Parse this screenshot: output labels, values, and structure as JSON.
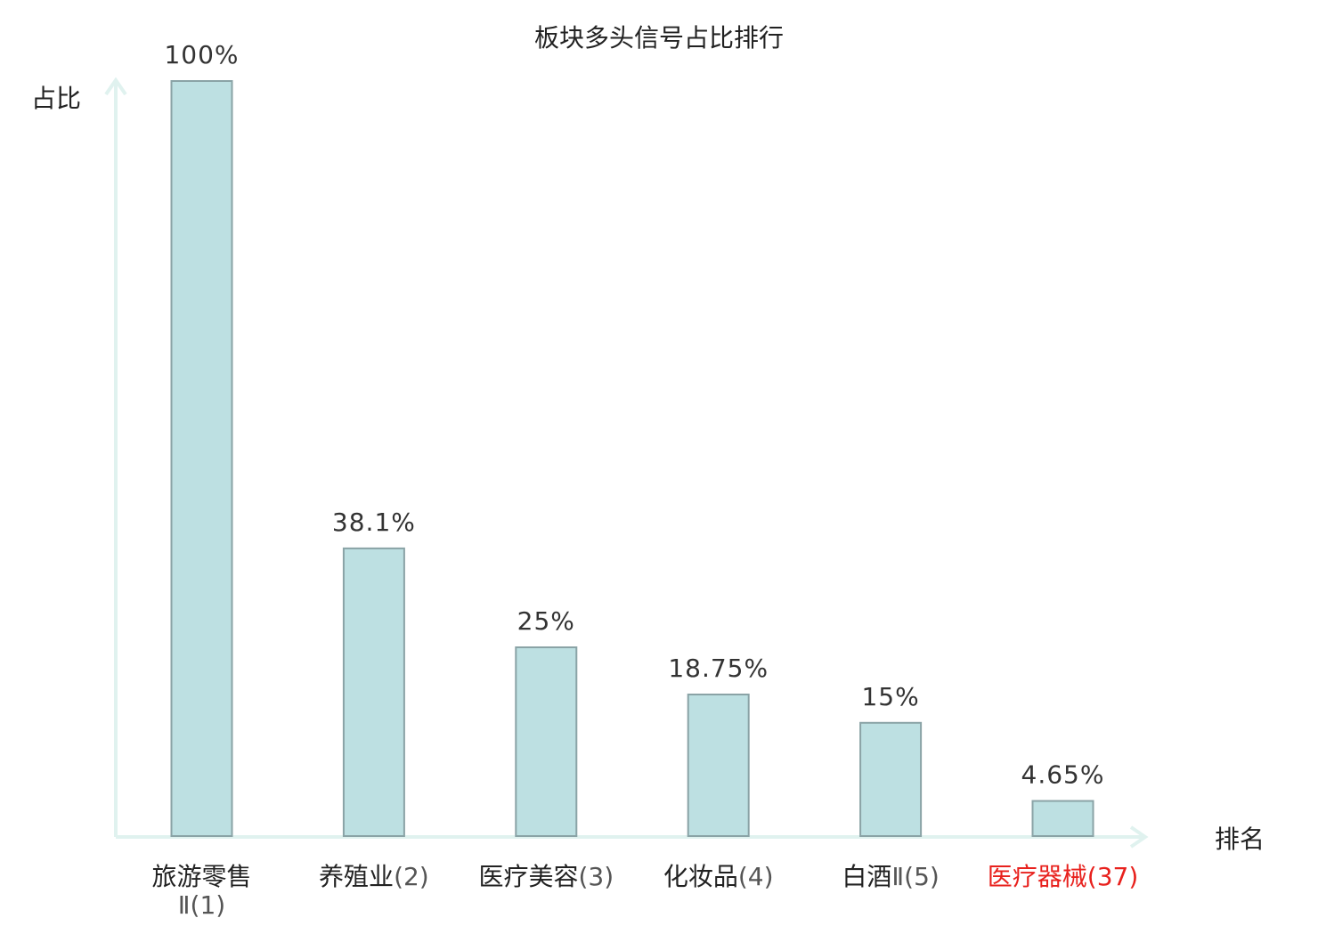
{
  "chart_data": {
    "type": "bar",
    "title": "板块多头信号占比排行",
    "ylabel": "占比",
    "xlabel": "排名",
    "ylim": [
      0,
      100
    ],
    "grid": false,
    "categories": [
      {
        "name": "旅游零售",
        "suffix": "Ⅱ",
        "rank": "(1)"
      },
      {
        "name": "养殖业",
        "suffix": "",
        "rank": "(2)"
      },
      {
        "name": "医疗美容",
        "suffix": "",
        "rank": "(3)"
      },
      {
        "name": "化妆品",
        "suffix": "",
        "rank": "(4)"
      },
      {
        "name": "白酒",
        "suffix": "Ⅱ",
        "rank": "(5)"
      },
      {
        "name": "医疗器械",
        "suffix": "",
        "rank": "(37)",
        "highlight": true
      }
    ],
    "values": [
      100,
      38.1,
      25,
      18.75,
      15,
      4.65
    ],
    "value_labels": [
      "100%",
      "38.1%",
      "25%",
      "18.75%",
      "15%",
      "4.65%"
    ],
    "colors": {
      "bar_fill": "#bde0e2",
      "bar_stroke": "#8aa3a6",
      "axis": "#e0f2ef",
      "highlight": "#e8211d"
    }
  }
}
